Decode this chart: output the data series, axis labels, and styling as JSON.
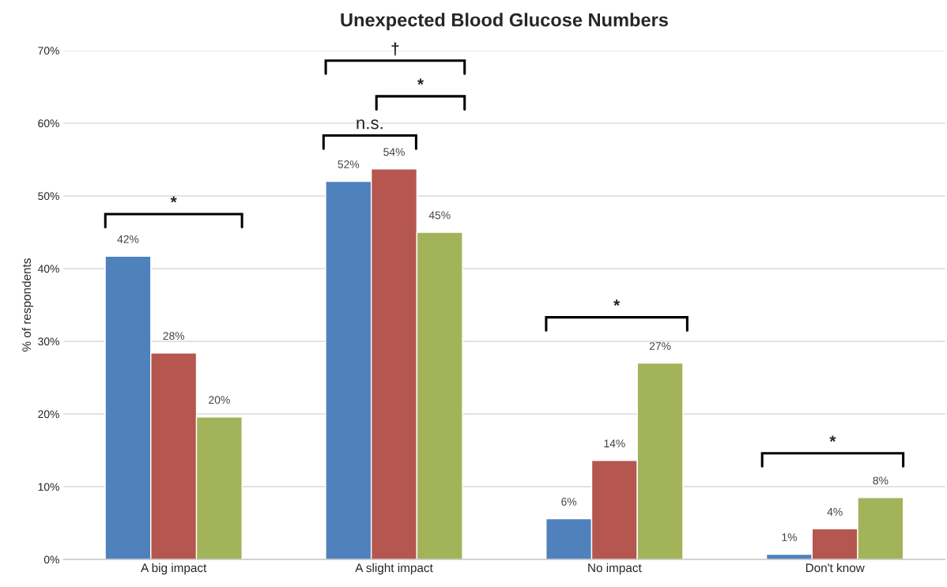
{
  "chart_data": {
    "type": "bar",
    "title": "Unexpected Blood Glucose Numbers",
    "ylabel": "% of respondents",
    "categories": [
      "A big impact",
      "A slight impact",
      "No impact",
      "Don't know"
    ],
    "series": [
      {
        "color": "#4f81bd",
        "values": [
          41.7,
          52,
          5.6,
          0.7
        ],
        "value_labels": [
          "42%",
          "52%",
          "6%",
          "1%"
        ]
      },
      {
        "color": "#b5574f",
        "values": [
          28.4,
          53.7,
          13.6,
          4.2
        ],
        "value_labels": [
          "28%",
          "54%",
          "14%",
          "4%"
        ]
      },
      {
        "color": "#a3b35a",
        "values": [
          19.6,
          45,
          27,
          8.5
        ],
        "value_labels": [
          "20%",
          "45%",
          "27%",
          "8%"
        ]
      }
    ],
    "ylim": [
      0,
      70
    ],
    "yticks": [
      {
        "value": 0,
        "label": "0%"
      },
      {
        "value": 10,
        "label": "10%"
      },
      {
        "value": 20,
        "label": "20%"
      },
      {
        "value": 30,
        "label": "30%"
      },
      {
        "value": 40,
        "label": "40%"
      },
      {
        "value": 50,
        "label": "50%"
      },
      {
        "value": 60,
        "label": "60%"
      },
      {
        "value": 70,
        "label": "70%"
      }
    ],
    "grid": "y",
    "annotations": [
      "*",
      "†",
      "*",
      "n.s.",
      "*",
      "*"
    ]
  }
}
